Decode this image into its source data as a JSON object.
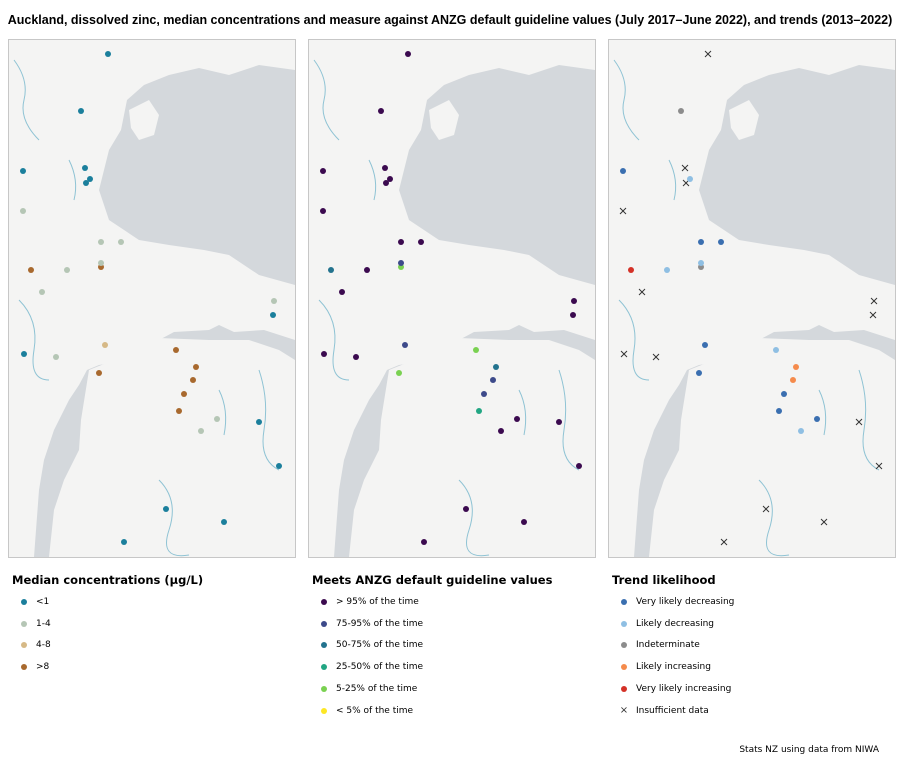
{
  "title": "Auckland, dissolved zinc, median concentrations and measure against ANZG default guideline values (July 2017–June 2022), and trends (2013–2022)",
  "source": "Stats NZ using data from NIWA",
  "colors": {
    "sea": "#d4d8dc",
    "land": "#f4f4f3",
    "river": "#8fc3d4"
  },
  "panels": [
    {
      "id": "median",
      "legend_title": "Median concentrations (µg/L)",
      "legend": [
        {
          "label": "<1",
          "color": "#1b7f9c"
        },
        {
          "label": "1-4",
          "color": "#b5c6b5"
        },
        {
          "label": "4-8",
          "color": "#d6b986"
        },
        {
          "label": ">8",
          "color": "#a8692e"
        }
      ]
    },
    {
      "id": "guideline",
      "legend_title": "Meets ANZG default guideline values",
      "legend": [
        {
          "label": "> 95% of the time",
          "color": "#3b0a4f"
        },
        {
          "label": "75-95% of the time",
          "color": "#3d4a8a"
        },
        {
          "label": "50-75% of the time",
          "color": "#23738e"
        },
        {
          "label": "25-50% of the time",
          "color": "#22a683"
        },
        {
          "label": "5-25% of the time",
          "color": "#7ad151"
        },
        {
          "label": "< 5% of the time",
          "color": "#fde725"
        }
      ]
    },
    {
      "id": "trend",
      "legend_title": "Trend likelihood",
      "legend": [
        {
          "label": "Very likely decreasing",
          "color": "#3a6fb0",
          "marker": "dot"
        },
        {
          "label": "Likely decreasing",
          "color": "#8fbfe3",
          "marker": "dot"
        },
        {
          "label": "Indeterminate",
          "color": "#8c8c8c",
          "marker": "dot"
        },
        {
          "label": "Likely increasing",
          "color": "#f58b4c",
          "marker": "dot"
        },
        {
          "label": "Very likely increasing",
          "color": "#d43127",
          "marker": "dot"
        },
        {
          "label": "Insufficient data",
          "color": "#333333",
          "marker": "x"
        }
      ]
    }
  ],
  "sites": [
    {
      "m": 0,
      "g": 0,
      "t": 5
    },
    {
      "m": 0,
      "g": 0,
      "t": 2
    },
    {
      "m": 0,
      "g": 0,
      "t": 0
    },
    {
      "m": 0,
      "g": 0,
      "t": 5
    },
    {
      "m": 0,
      "g": 0,
      "t": 1
    },
    {
      "m": 0,
      "g": 0,
      "t": 5
    },
    {
      "m": 1,
      "g": 0,
      "t": 5
    },
    {
      "m": 1,
      "g": 0,
      "t": 0
    },
    {
      "m": 1,
      "g": 0,
      "t": 0
    },
    {
      "m": 1,
      "g": 0,
      "t": 1
    },
    {
      "m": 3,
      "g": 2,
      "t": 4
    },
    {
      "m": 1,
      "g": 0,
      "t": 5
    },
    {
      "m": 3,
      "g": 4,
      "t": 2
    },
    {
      "m": 1,
      "g": 1,
      "t": 1
    },
    {
      "m": 1,
      "g": 0,
      "t": 5
    },
    {
      "m": 0,
      "g": 0,
      "t": 5
    },
    {
      "m": 0,
      "g": 0,
      "t": 5
    },
    {
      "m": 1,
      "g": 0,
      "t": 5
    },
    {
      "m": 2,
      "g": 1,
      "t": 0
    },
    {
      "m": 3,
      "g": 4,
      "t": 1
    },
    {
      "m": 3,
      "g": 4,
      "t": 0
    },
    {
      "m": 3,
      "g": 2,
      "t": 3
    },
    {
      "m": 3,
      "g": 1,
      "t": 3
    },
    {
      "m": 3,
      "g": 1,
      "t": 0
    },
    {
      "m": 3,
      "g": 3,
      "t": 0
    },
    {
      "m": 1,
      "g": 0,
      "t": 0
    },
    {
      "m": 1,
      "g": 0,
      "t": 1
    },
    {
      "m": 0,
      "g": 0,
      "t": 5
    },
    {
      "m": 0,
      "g": 0,
      "t": 5
    },
    {
      "m": 0,
      "g": 0,
      "t": 5
    },
    {
      "m": 0,
      "g": 0,
      "t": 5
    },
    {
      "m": 0,
      "g": 0,
      "t": 5
    }
  ]
}
